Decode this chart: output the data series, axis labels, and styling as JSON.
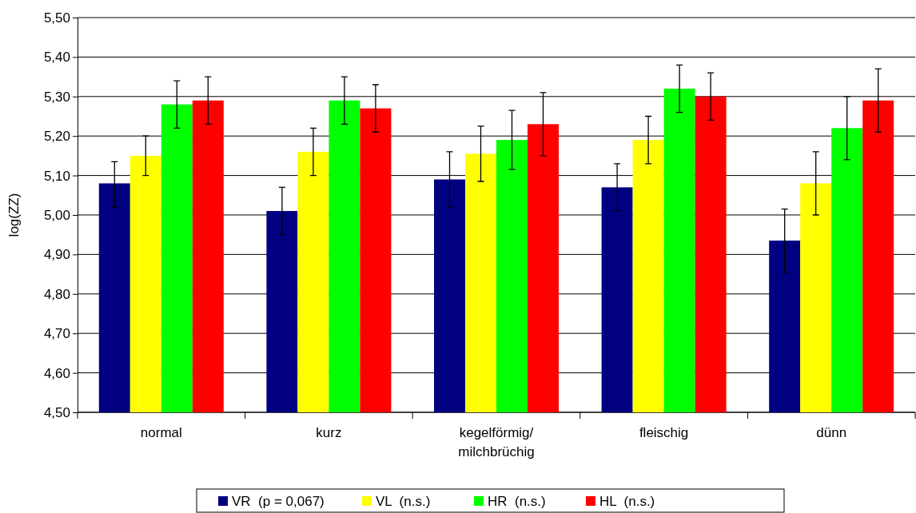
{
  "chart_data": {
    "type": "bar",
    "ylabel": "log(ZZ)",
    "categories": [
      "normal",
      "kurz",
      "kegelförmig/milchbrüchig",
      "fleischig",
      "dünn"
    ],
    "series": [
      {
        "name": "VR  (p = 0,067)",
        "color": "#000080",
        "values": [
          5.08,
          5.01,
          5.09,
          5.07,
          4.935
        ],
        "errors": [
          [
            5.02,
            5.135
          ],
          [
            4.95,
            5.07
          ],
          [
            5.02,
            5.16
          ],
          [
            5.01,
            5.13
          ],
          [
            4.855,
            5.015
          ]
        ]
      },
      {
        "name": "VL  (n.s.)",
        "color": "#ffff00",
        "values": [
          5.15,
          5.16,
          5.155,
          5.19,
          5.08
        ],
        "errors": [
          [
            5.1,
            5.2
          ],
          [
            5.1,
            5.22
          ],
          [
            5.085,
            5.225
          ],
          [
            5.13,
            5.25
          ],
          [
            5.0,
            5.16
          ]
        ]
      },
      {
        "name": "HR  (n.s.)",
        "color": "#00ff00",
        "values": [
          5.28,
          5.29,
          5.19,
          5.32,
          5.22
        ],
        "errors": [
          [
            5.22,
            5.34
          ],
          [
            5.23,
            5.35
          ],
          [
            5.115,
            5.265
          ],
          [
            5.26,
            5.38
          ],
          [
            5.14,
            5.3
          ]
        ]
      },
      {
        "name": "HL  (n.s.)",
        "color": "#ff0000",
        "values": [
          5.29,
          5.27,
          5.23,
          5.3,
          5.29
        ],
        "errors": [
          [
            5.23,
            5.35
          ],
          [
            5.21,
            5.33
          ],
          [
            5.15,
            5.31
          ],
          [
            5.24,
            5.36
          ],
          [
            5.21,
            5.37
          ]
        ]
      }
    ],
    "ylim": [
      4.5,
      5.5
    ],
    "yticks": [
      {
        "value": 4.5,
        "label": "4,50"
      },
      {
        "value": 4.6,
        "label": "4,60"
      },
      {
        "value": 4.7,
        "label": "4,70"
      },
      {
        "value": 4.8,
        "label": "4,80"
      },
      {
        "value": 4.9,
        "label": "4,90"
      },
      {
        "value": 5.0,
        "label": "5,00"
      },
      {
        "value": 5.1,
        "label": "5,10"
      },
      {
        "value": 5.2,
        "label": "5,20"
      },
      {
        "value": 5.3,
        "label": "5,30"
      },
      {
        "value": 5.4,
        "label": "5,40"
      },
      {
        "value": 5.5,
        "label": "5,50"
      }
    ],
    "grid": "y",
    "legend": "bottom"
  }
}
